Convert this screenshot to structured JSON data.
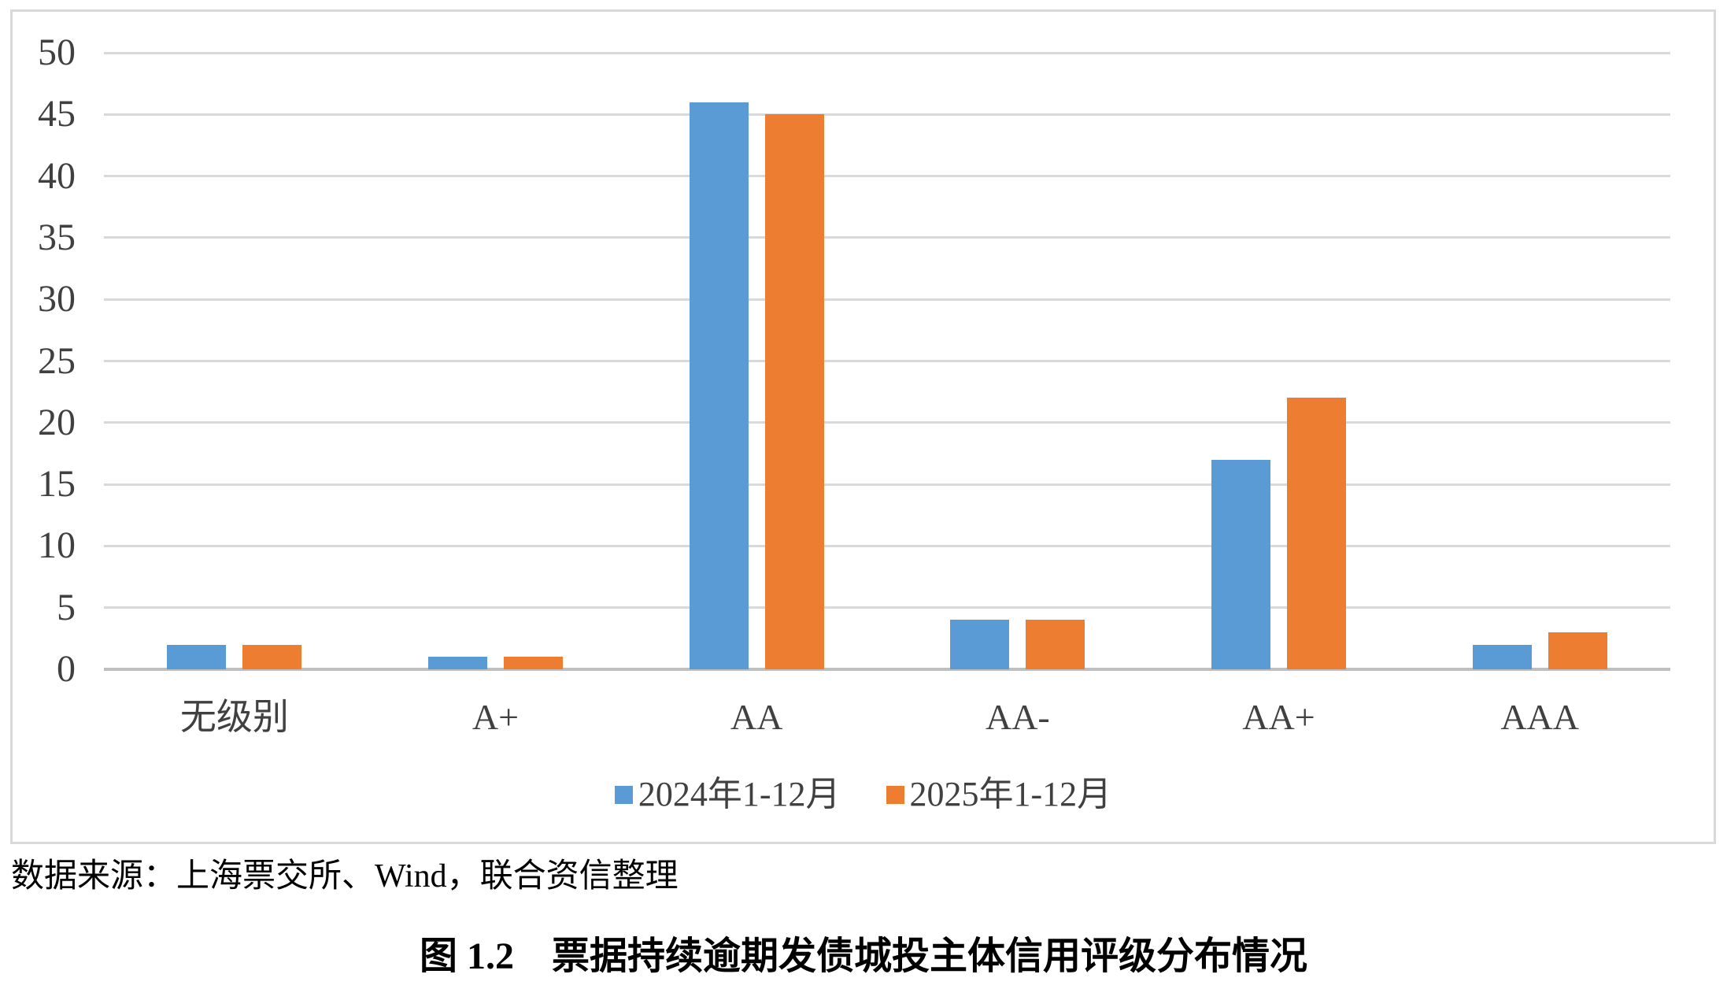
{
  "chart_data": {
    "type": "bar",
    "categories": [
      "无级别",
      "A+",
      "AA",
      "AA-",
      "AA+",
      "AAA"
    ],
    "series": [
      {
        "name": "2024年1-12月",
        "color": "#5B9BD5",
        "values": [
          2,
          1,
          46,
          4,
          17,
          2
        ]
      },
      {
        "name": "2025年1-12月",
        "color": "#ED7D31",
        "values": [
          2,
          1,
          45,
          4,
          22,
          3
        ]
      }
    ],
    "title": "",
    "xlabel": "",
    "ylabel": "",
    "ylim": [
      0,
      50
    ],
    "ytick_step": 5,
    "grid": true,
    "legend_position": "bottom"
  },
  "source_note": "数据来源：上海票交所、Wind，联合资信整理",
  "caption": "图 1.2　票据持续逾期发债城投主体信用评级分布情况",
  "colors": {
    "gridline": "#D9D9D9",
    "axis_line": "#BFBFBF",
    "tick_label": "#404040",
    "series_2024": "#5B9BD5",
    "series_2025": "#ED7D31"
  }
}
